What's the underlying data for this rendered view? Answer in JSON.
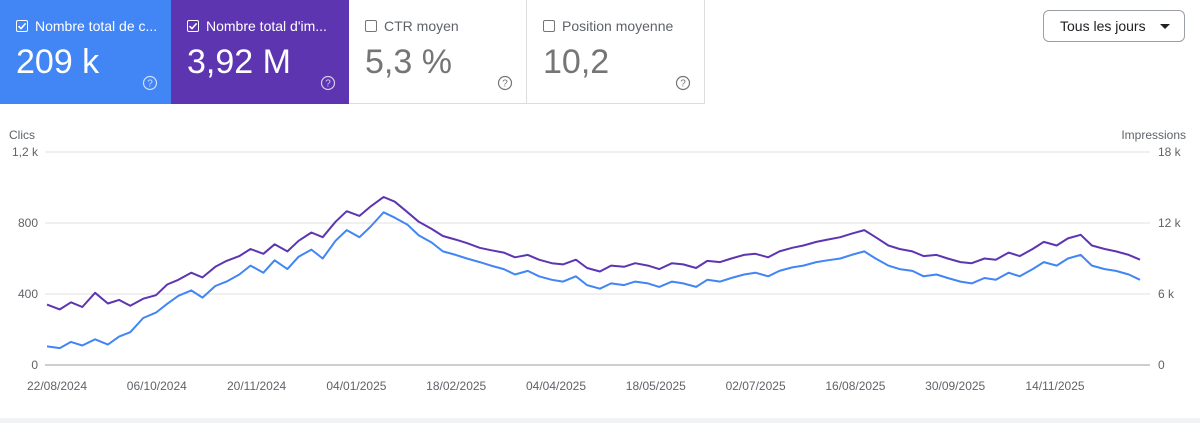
{
  "cards": [
    {
      "id": "clicks",
      "label": "Nombre total de c...",
      "value": "209 k",
      "checked": true
    },
    {
      "id": "impressions",
      "label": "Nombre total d'im...",
      "value": "3,92 M",
      "checked": true
    },
    {
      "id": "ctr",
      "label": "CTR moyen",
      "value": "5,3 %",
      "checked": false
    },
    {
      "id": "position",
      "label": "Position moyenne",
      "value": "10,2",
      "checked": false
    }
  ],
  "dropdown": {
    "label": "Tous les jours"
  },
  "colors": {
    "clicks": "#4285f4",
    "impressions": "#5e35b1",
    "grid": "#e0e0e0"
  },
  "chart_data": {
    "type": "line",
    "x_labels": [
      "22/08/2024",
      "06/10/2024",
      "20/11/2024",
      "04/01/2025",
      "18/02/2025",
      "04/04/2025",
      "18/05/2025",
      "02/07/2025",
      "16/08/2025",
      "30/09/2025",
      "14/11/2025"
    ],
    "y_left": {
      "title": "Clics",
      "range": [
        0,
        1200
      ],
      "ticks": [
        "0",
        "400",
        "800",
        "1,2 k"
      ]
    },
    "y_right": {
      "title": "Impressions",
      "range": [
        0,
        18000
      ],
      "ticks": [
        "0",
        "6 k",
        "12 k",
        "18 k"
      ]
    },
    "series": [
      {
        "name": "Clics",
        "axis": "left",
        "points": [
          [
            0,
            105
          ],
          [
            8,
            95
          ],
          [
            15,
            130
          ],
          [
            22,
            110
          ],
          [
            30,
            145
          ],
          [
            38,
            115
          ],
          [
            45,
            160
          ],
          [
            52,
            185
          ],
          [
            60,
            265
          ],
          [
            68,
            295
          ],
          [
            75,
            345
          ],
          [
            82,
            390
          ],
          [
            90,
            420
          ],
          [
            97,
            380
          ],
          [
            105,
            445
          ],
          [
            112,
            470
          ],
          [
            120,
            510
          ],
          [
            127,
            560
          ],
          [
            135,
            520
          ],
          [
            142,
            590
          ],
          [
            150,
            540
          ],
          [
            157,
            610
          ],
          [
            165,
            650
          ],
          [
            172,
            600
          ],
          [
            180,
            700
          ],
          [
            187,
            760
          ],
          [
            195,
            720
          ],
          [
            202,
            780
          ],
          [
            210,
            860
          ],
          [
            217,
            830
          ],
          [
            225,
            790
          ],
          [
            232,
            730
          ],
          [
            240,
            690
          ],
          [
            247,
            640
          ],
          [
            255,
            620
          ],
          [
            262,
            600
          ],
          [
            270,
            580
          ],
          [
            277,
            560
          ],
          [
            285,
            540
          ],
          [
            292,
            510
          ],
          [
            300,
            530
          ],
          [
            307,
            500
          ],
          [
            315,
            480
          ],
          [
            322,
            470
          ],
          [
            330,
            500
          ],
          [
            337,
            450
          ],
          [
            345,
            430
          ],
          [
            352,
            460
          ],
          [
            360,
            450
          ],
          [
            367,
            470
          ],
          [
            375,
            460
          ],
          [
            382,
            440
          ],
          [
            390,
            470
          ],
          [
            397,
            460
          ],
          [
            405,
            440
          ],
          [
            412,
            480
          ],
          [
            420,
            470
          ],
          [
            427,
            490
          ],
          [
            435,
            510
          ],
          [
            442,
            520
          ],
          [
            450,
            500
          ],
          [
            457,
            530
          ],
          [
            465,
            550
          ],
          [
            472,
            560
          ],
          [
            480,
            580
          ],
          [
            487,
            590
          ],
          [
            495,
            600
          ],
          [
            502,
            620
          ],
          [
            510,
            640
          ],
          [
            517,
            600
          ],
          [
            525,
            560
          ],
          [
            532,
            540
          ],
          [
            540,
            530
          ],
          [
            547,
            500
          ],
          [
            555,
            510
          ],
          [
            562,
            490
          ],
          [
            570,
            470
          ],
          [
            577,
            460
          ],
          [
            585,
            490
          ],
          [
            592,
            480
          ],
          [
            600,
            520
          ],
          [
            607,
            500
          ],
          [
            615,
            540
          ],
          [
            622,
            580
          ],
          [
            630,
            560
          ],
          [
            637,
            600
          ],
          [
            645,
            620
          ],
          [
            652,
            560
          ],
          [
            660,
            540
          ],
          [
            667,
            530
          ],
          [
            675,
            510
          ],
          [
            682,
            480
          ]
        ]
      },
      {
        "name": "Impressions",
        "axis": "right",
        "points": [
          [
            0,
            5100
          ],
          [
            8,
            4700
          ],
          [
            15,
            5300
          ],
          [
            22,
            4900
          ],
          [
            30,
            6100
          ],
          [
            38,
            5200
          ],
          [
            45,
            5500
          ],
          [
            52,
            5000
          ],
          [
            60,
            5600
          ],
          [
            68,
            5900
          ],
          [
            75,
            6800
          ],
          [
            82,
            7200
          ],
          [
            90,
            7800
          ],
          [
            97,
            7400
          ],
          [
            105,
            8300
          ],
          [
            112,
            8800
          ],
          [
            120,
            9200
          ],
          [
            127,
            9800
          ],
          [
            135,
            9400
          ],
          [
            142,
            10200
          ],
          [
            150,
            9600
          ],
          [
            157,
            10500
          ],
          [
            165,
            11200
          ],
          [
            172,
            10800
          ],
          [
            180,
            12100
          ],
          [
            187,
            13000
          ],
          [
            195,
            12600
          ],
          [
            202,
            13400
          ],
          [
            210,
            14200
          ],
          [
            217,
            13800
          ],
          [
            225,
            12900
          ],
          [
            232,
            12100
          ],
          [
            240,
            11500
          ],
          [
            247,
            10900
          ],
          [
            255,
            10600
          ],
          [
            262,
            10300
          ],
          [
            270,
            9900
          ],
          [
            277,
            9700
          ],
          [
            285,
            9500
          ],
          [
            292,
            9100
          ],
          [
            300,
            9300
          ],
          [
            307,
            8900
          ],
          [
            315,
            8600
          ],
          [
            322,
            8500
          ],
          [
            330,
            8900
          ],
          [
            337,
            8200
          ],
          [
            345,
            7900
          ],
          [
            352,
            8400
          ],
          [
            360,
            8300
          ],
          [
            367,
            8600
          ],
          [
            375,
            8400
          ],
          [
            382,
            8100
          ],
          [
            390,
            8600
          ],
          [
            397,
            8500
          ],
          [
            405,
            8200
          ],
          [
            412,
            8800
          ],
          [
            420,
            8700
          ],
          [
            427,
            9000
          ],
          [
            435,
            9300
          ],
          [
            442,
            9400
          ],
          [
            450,
            9100
          ],
          [
            457,
            9600
          ],
          [
            465,
            9900
          ],
          [
            472,
            10100
          ],
          [
            480,
            10400
          ],
          [
            487,
            10600
          ],
          [
            495,
            10800
          ],
          [
            502,
            11100
          ],
          [
            510,
            11400
          ],
          [
            517,
            10800
          ],
          [
            525,
            10100
          ],
          [
            532,
            9800
          ],
          [
            540,
            9600
          ],
          [
            547,
            9200
          ],
          [
            555,
            9300
          ],
          [
            562,
            9000
          ],
          [
            570,
            8700
          ],
          [
            577,
            8600
          ],
          [
            585,
            9000
          ],
          [
            592,
            8900
          ],
          [
            600,
            9500
          ],
          [
            607,
            9200
          ],
          [
            615,
            9800
          ],
          [
            622,
            10400
          ],
          [
            630,
            10100
          ],
          [
            637,
            10700
          ],
          [
            645,
            11000
          ],
          [
            652,
            10100
          ],
          [
            660,
            9800
          ],
          [
            667,
            9600
          ],
          [
            675,
            9300
          ],
          [
            682,
            8900
          ]
        ]
      }
    ]
  }
}
